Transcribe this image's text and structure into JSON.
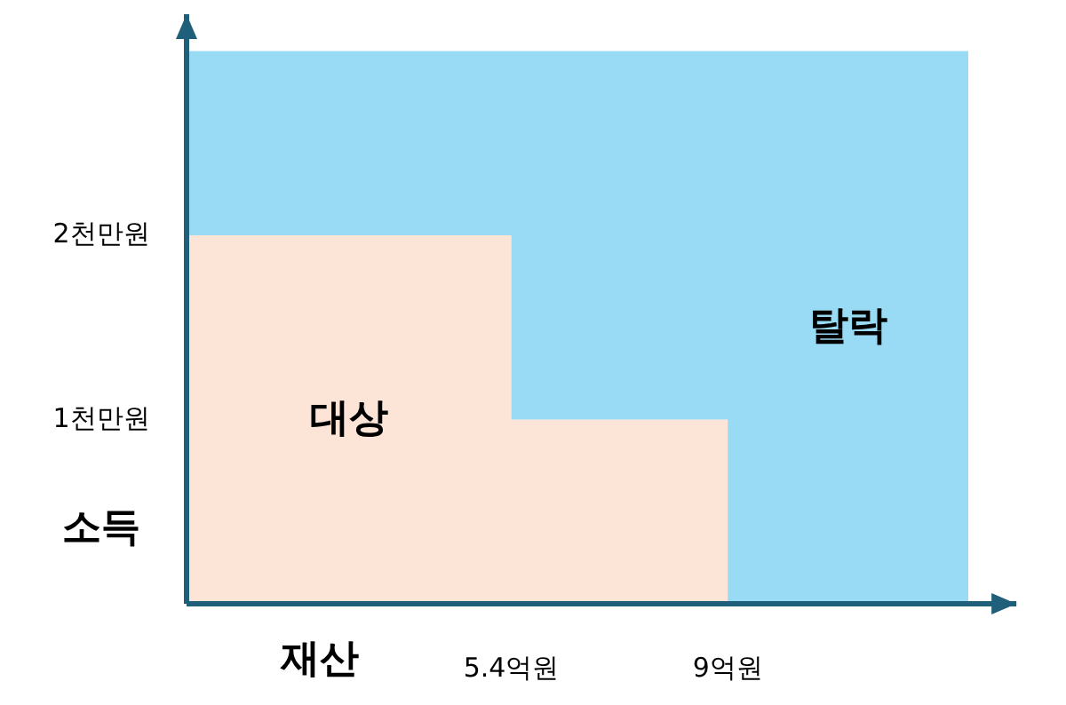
{
  "chart_data": {
    "type": "area",
    "stacked": true,
    "xlabel": "재산",
    "ylabel": "소득",
    "xlim": [
      0,
      13.8
    ],
    "ylim": [
      0,
      3.2
    ],
    "xticks": [
      {
        "value": 5.4,
        "label": "5.4억원"
      },
      {
        "value": 9,
        "label": "9억원"
      }
    ],
    "yticks": [
      {
        "value": 1,
        "label": "1천만원"
      },
      {
        "value": 2,
        "label": "2천만원"
      }
    ],
    "x": [
      0,
      5.4,
      5.4,
      9,
      9,
      13
    ],
    "series": [
      {
        "name": "대상",
        "color": "#fce4d6",
        "values": [
          2,
          2,
          1,
          1,
          0,
          0
        ]
      },
      {
        "name": "탈락",
        "color": "#99dbf5",
        "values": [
          1,
          1,
          2,
          2,
          3,
          3
        ]
      }
    ],
    "grid": false
  }
}
